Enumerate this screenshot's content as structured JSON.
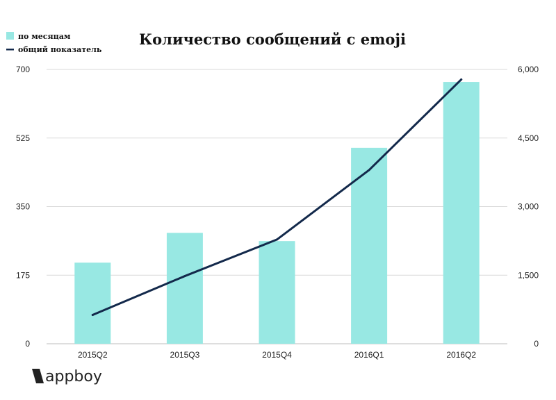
{
  "chart_data": {
    "type": "bar",
    "title": "Количество сообщений с emoji",
    "categories": [
      "2015Q2",
      "2015Q3",
      "2015Q4",
      "2016Q1",
      "2016Q2"
    ],
    "series": [
      {
        "name": "по месяцам",
        "type": "bar",
        "axis": "left",
        "color": "#98e8e3",
        "values": [
          207,
          283,
          262,
          500,
          668
        ]
      },
      {
        "name": "общий показатель",
        "type": "line",
        "axis": "right",
        "color": "#13294b",
        "values": [
          630,
          1480,
          2280,
          3800,
          5780
        ]
      }
    ],
    "y_left": {
      "ticks": [
        "0",
        "175",
        "350",
        "525",
        "700"
      ],
      "range": [
        0,
        700
      ]
    },
    "y_right": {
      "ticks": [
        "0",
        "1,500",
        "3,000",
        "4,500",
        "6,000"
      ],
      "range": [
        0,
        6000
      ]
    },
    "grid": true,
    "legend_position": "top-left"
  },
  "branding": {
    "logo": "appboy"
  }
}
